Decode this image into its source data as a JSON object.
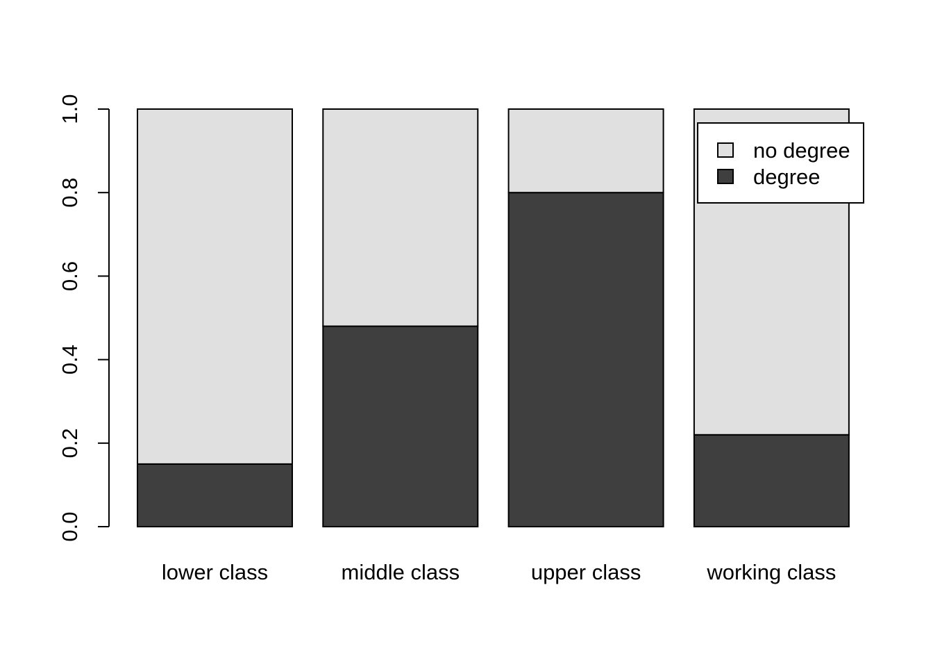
{
  "chart_data": {
    "type": "bar",
    "stacked": true,
    "title": "",
    "xlabel": "",
    "ylabel": "",
    "ylim": [
      0,
      1
    ],
    "yticks": [
      0.0,
      0.2,
      0.4,
      0.6,
      0.8,
      1.0
    ],
    "ytick_labels": [
      "0.0",
      "0.2",
      "0.4",
      "0.6",
      "0.8",
      "1.0"
    ],
    "categories": [
      "lower class",
      "middle class",
      "upper class",
      "working class"
    ],
    "series": [
      {
        "name": "degree",
        "values": [
          0.15,
          0.48,
          0.8,
          0.22
        ],
        "color": "#3f3f3f"
      },
      {
        "name": "no degree",
        "values": [
          0.85,
          0.52,
          0.2,
          0.78
        ],
        "color": "#e0e0e0"
      }
    ],
    "legend": {
      "placement": "top-right",
      "entries": [
        {
          "label": "no degree",
          "color": "#e0e0e0"
        },
        {
          "label": "degree",
          "color": "#3f3f3f"
        }
      ]
    },
    "grid": false
  }
}
